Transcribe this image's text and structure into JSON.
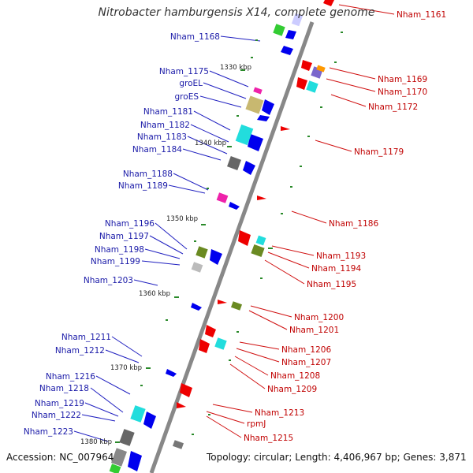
{
  "title": "Nitrobacter hamburgensis X14, complete genome",
  "footer": {
    "accession": "Accession: NC_007964",
    "summary": "Topology: circular; Length: 4,406,967 bp; Genes: 3,871"
  },
  "kbp_marks": [
    "1330 kbp",
    "1340 kbp",
    "1350 kbp",
    "1360 kbp",
    "1370 kbp",
    "1380 kbp"
  ],
  "left_labels": [
    "Nham_1168",
    "Nham_1175",
    "groEL",
    "groES",
    "Nham_1181",
    "Nham_1182",
    "Nham_1183",
    "Nham_1184",
    "Nham_1188",
    "Nham_1189",
    "Nham_1196",
    "Nham_1197",
    "Nham_1198",
    "Nham_1199",
    "Nham_1203",
    "Nham_1211",
    "Nham_1212",
    "Nham_1216",
    "Nham_1218",
    "Nham_1219",
    "Nham_1222",
    "Nham_1223"
  ],
  "right_labels": [
    "Nham_1161",
    "Nham_1169",
    "Nham_1170",
    "Nham_1172",
    "Nham_1179",
    "Nham_1186",
    "Nham_1193",
    "Nham_1194",
    "Nham_1195",
    "Nham_1200",
    "Nham_1201",
    "Nham_1206",
    "Nham_1207",
    "Nham_1208",
    "Nham_1209",
    "Nham_1213",
    "rpmJ",
    "Nham_1215"
  ],
  "colors": {
    "left_label": "#1a1aa8",
    "right_label": "#c00000",
    "forward_gene": "#0000ee",
    "reverse_gene": "#ee0000"
  }
}
